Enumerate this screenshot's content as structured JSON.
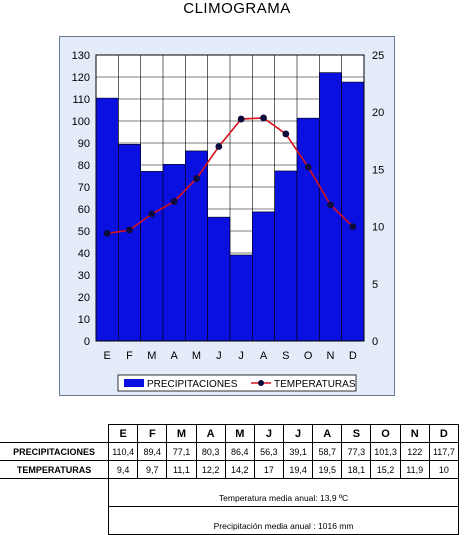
{
  "title": "CLIMOGRAMA",
  "chart_data": {
    "type": "bar+line",
    "categories": [
      "E",
      "F",
      "M",
      "A",
      "M",
      "J",
      "J",
      "A",
      "S",
      "O",
      "N",
      "D"
    ],
    "series": [
      {
        "name": "PRECIPITACIONES",
        "type": "bar",
        "axis": "left",
        "color": "#0a10e0",
        "values": [
          110.4,
          89.4,
          77.1,
          80.3,
          86.4,
          56.3,
          39.1,
          58.7,
          77.3,
          101.3,
          122,
          117.7
        ]
      },
      {
        "name": "TEMPERATURAS",
        "type": "line",
        "axis": "right",
        "color": "#d8101c",
        "marker_color": "#0b0b3c",
        "values": [
          9.4,
          9.7,
          11.1,
          12.2,
          14.2,
          17,
          19.4,
          19.5,
          18.1,
          15.2,
          11.9,
          10
        ]
      }
    ],
    "y_left": {
      "min": 0,
      "max": 130,
      "ticks": [
        0,
        10,
        20,
        30,
        40,
        50,
        60,
        70,
        80,
        90,
        100,
        110,
        120,
        130
      ]
    },
    "y_right": {
      "min": 0,
      "max": 25,
      "ticks": [
        0,
        5,
        10,
        15,
        20,
        25
      ]
    },
    "grid": true,
    "legend_position": "bottom",
    "plot_background": "#ffffff",
    "frame_background": "#e4ecf9"
  },
  "table": {
    "months": [
      "E",
      "F",
      "M",
      "A",
      "M",
      "J",
      "J",
      "A",
      "S",
      "O",
      "N",
      "D"
    ],
    "rows": [
      {
        "label": "PRECIPITACIONES",
        "values": [
          "110,4",
          "89,4",
          "77,1",
          "80,3",
          "86,4",
          "56,3",
          "39,1",
          "58,7",
          "77,3",
          "101,3",
          "122",
          "117,7"
        ]
      },
      {
        "label": "TEMPERATURAS",
        "values": [
          "9,4",
          "9,7",
          "11,1",
          "12,2",
          "14,2",
          "17",
          "19,4",
          "19,5",
          "18,1",
          "15,2",
          "11,9",
          "10"
        ]
      }
    ],
    "temp_media": "Temperatura media anual: 13,9 ºC",
    "precip_media": "Precipitación media anual : 1016 mm"
  }
}
